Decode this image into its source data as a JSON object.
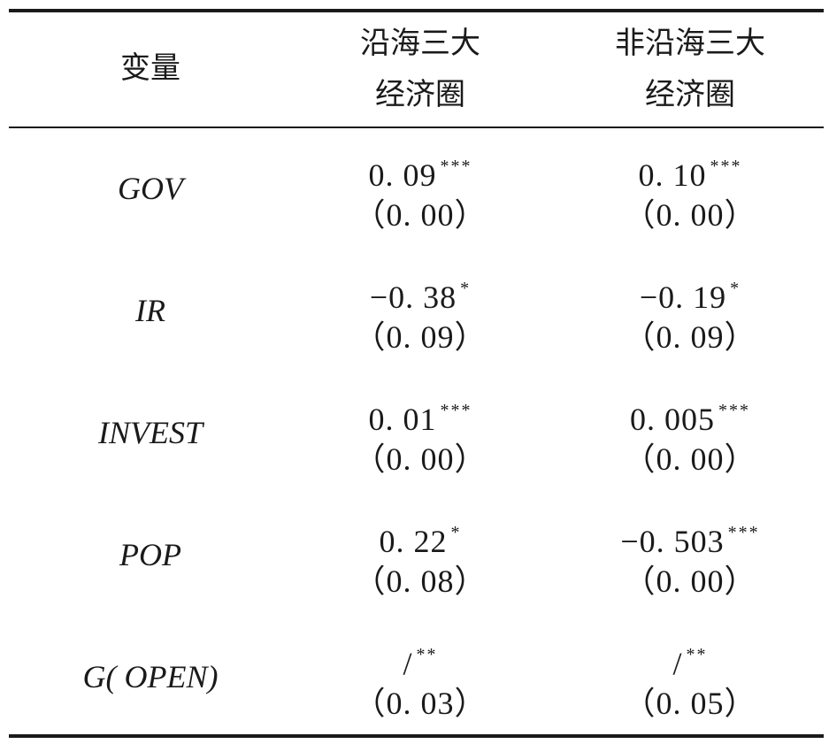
{
  "header": {
    "variable": "变量",
    "coastal_line1": "沿海三大",
    "coastal_line2": "经济圈",
    "noncoastal_line1": "非沿海三大",
    "noncoastal_line2": "经济圈"
  },
  "rows": [
    {
      "name": "GOV",
      "coastal": {
        "coef": "0. 09",
        "stars": "***",
        "se": "（0. 00）"
      },
      "noncoastal": {
        "coef": "0. 10",
        "stars": "***",
        "se": "（0. 00）"
      }
    },
    {
      "name": "IR",
      "coastal": {
        "coef": "−0. 38",
        "stars": "*",
        "se": "（0. 09）"
      },
      "noncoastal": {
        "coef": "−0. 19",
        "stars": "*",
        "se": "（0. 09）"
      }
    },
    {
      "name": "INVEST",
      "coastal": {
        "coef": "0. 01",
        "stars": "***",
        "se": "（0. 00）"
      },
      "noncoastal": {
        "coef": "0. 005",
        "stars": "***",
        "se": "（0. 00）"
      }
    },
    {
      "name": "POP",
      "coastal": {
        "coef": "0. 22",
        "stars": "*",
        "se": "（0. 08）"
      },
      "noncoastal": {
        "coef": "−0. 503",
        "stars": "***",
        "se": "（0. 00）"
      }
    },
    {
      "name": "G( OPEN)",
      "coastal": {
        "coef": "/",
        "stars": "**",
        "se": "（0. 03）"
      },
      "noncoastal": {
        "coef": "/",
        "stars": "**",
        "se": "（0. 05）"
      }
    }
  ]
}
